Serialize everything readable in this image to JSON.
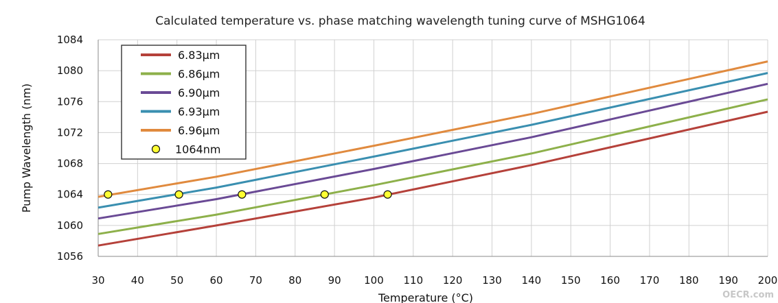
{
  "watermark": "OECR.com",
  "chart_data": {
    "type": "line",
    "title": "Calculated temperature vs. phase matching wavelength tuning curve of MSHG1064",
    "xlabel": "Temperature (°C)",
    "ylabel": "Pump Wavelength (nm)",
    "xlim": [
      30,
      200
    ],
    "ylim": [
      1056,
      1084
    ],
    "xticks": [
      30,
      40,
      50,
      60,
      70,
      80,
      90,
      100,
      110,
      120,
      130,
      140,
      150,
      160,
      170,
      180,
      190,
      200
    ],
    "yticks": [
      1056,
      1060,
      1064,
      1068,
      1072,
      1076,
      1080,
      1084
    ],
    "grid": true,
    "legend_position": "top-left",
    "series": [
      {
        "name": "6.83µm",
        "color": "#b5413a",
        "x": [
          30,
          60,
          100,
          140,
          200
        ],
        "y": [
          1057.4,
          1060.0,
          1063.6,
          1067.8,
          1074.7
        ]
      },
      {
        "name": "6.86µm",
        "color": "#8db04a",
        "x": [
          30,
          60,
          100,
          140,
          200
        ],
        "y": [
          1058.9,
          1061.4,
          1065.2,
          1069.3,
          1076.3
        ]
      },
      {
        "name": "6.90µm",
        "color": "#6a4a95",
        "x": [
          30,
          60,
          100,
          140,
          200
        ],
        "y": [
          1060.9,
          1063.4,
          1067.3,
          1071.4,
          1078.3
        ]
      },
      {
        "name": "6.93µm",
        "color": "#3a8fb0",
        "x": [
          30,
          60,
          100,
          140,
          200
        ],
        "y": [
          1062.3,
          1064.9,
          1068.9,
          1073.0,
          1079.7
        ]
      },
      {
        "name": "6.96µm",
        "color": "#e08a3e",
        "x": [
          30,
          60,
          100,
          140,
          200
        ],
        "y": [
          1063.7,
          1066.3,
          1070.3,
          1074.4,
          1081.2
        ]
      }
    ],
    "markers": {
      "name": "1064nm",
      "color": "#ffff33",
      "points": [
        {
          "x": 32.5,
          "y": 1064
        },
        {
          "x": 50.5,
          "y": 1064
        },
        {
          "x": 66.5,
          "y": 1064
        },
        {
          "x": 87.5,
          "y": 1064
        },
        {
          "x": 103.5,
          "y": 1064
        }
      ]
    }
  }
}
